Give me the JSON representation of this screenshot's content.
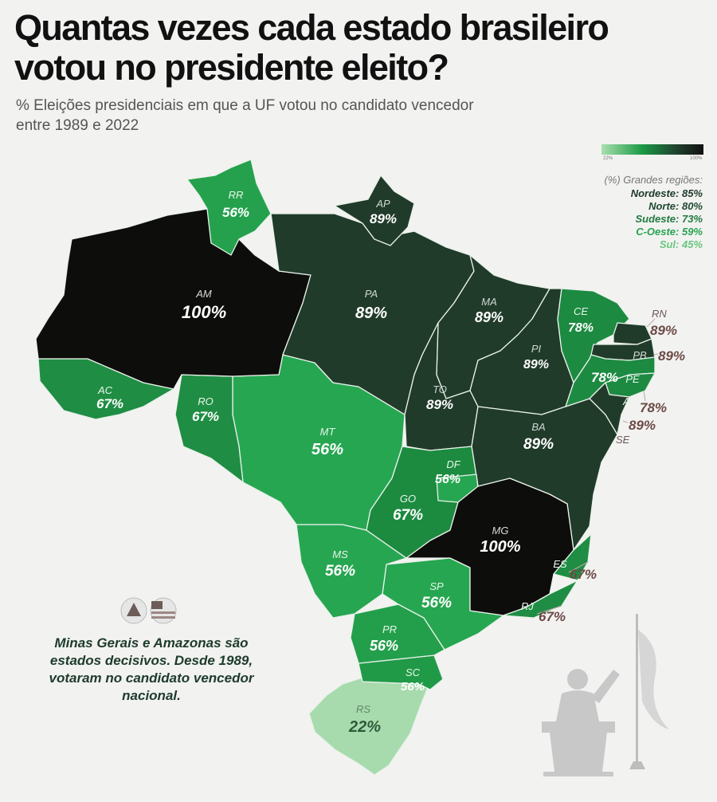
{
  "header": {
    "title": "Quantas vezes cada estado brasileiro votou no presidente eleito?",
    "subtitle": "% Eleições presidenciais em que a UF votou no candidato vencedor entre 1989 e 2022"
  },
  "legend": {
    "min_label": "22%",
    "max_label": "100%",
    "colors": [
      "#a8dfae",
      "#1c9a46",
      "#1f3f2c",
      "#111111"
    ]
  },
  "regions": {
    "title": "(%) Grandes regiões:",
    "items": [
      {
        "text": "Nordeste: 85%",
        "color": "#1e3a29"
      },
      {
        "text": "Norte: 80%",
        "color": "#1f4a30"
      },
      {
        "text": "Sudeste: 73%",
        "color": "#217a3f"
      },
      {
        "text": "C-Oeste: 59%",
        "color": "#27a352"
      },
      {
        "text": "Sul: 45%",
        "color": "#69c57d"
      }
    ]
  },
  "states": [
    {
      "uf": "RR",
      "value": "56%"
    },
    {
      "uf": "AP",
      "value": "89%"
    },
    {
      "uf": "AM",
      "value": "100%"
    },
    {
      "uf": "PA",
      "value": "89%"
    },
    {
      "uf": "MA",
      "value": "89%"
    },
    {
      "uf": "CE",
      "value": "78%"
    },
    {
      "uf": "RN",
      "value": "89%"
    },
    {
      "uf": "PB",
      "value": "89%"
    },
    {
      "uf": "PE",
      "value": "78%"
    },
    {
      "uf": "PI",
      "value": "89%"
    },
    {
      "uf": "AL",
      "value": "78%"
    },
    {
      "uf": "SE",
      "value": "89%"
    },
    {
      "uf": "AC",
      "value": "67%"
    },
    {
      "uf": "RO",
      "value": "67%"
    },
    {
      "uf": "TO",
      "value": "89%"
    },
    {
      "uf": "BA",
      "value": "89%"
    },
    {
      "uf": "MT",
      "value": "56%"
    },
    {
      "uf": "DF",
      "value": "56%"
    },
    {
      "uf": "GO",
      "value": "67%"
    },
    {
      "uf": "MG",
      "value": "100%"
    },
    {
      "uf": "ES",
      "value": "67%"
    },
    {
      "uf": "MS",
      "value": "56%"
    },
    {
      "uf": "SP",
      "value": "56%"
    },
    {
      "uf": "RJ",
      "value": "67%"
    },
    {
      "uf": "PR",
      "value": "56%"
    },
    {
      "uf": "SC",
      "value": "56%"
    },
    {
      "uf": "RS",
      "value": "22%"
    }
  ],
  "note": "Minas Gerais e Amazonas são estados decisivos. Desde 1989, votaram no candidato vencedor nacional."
}
